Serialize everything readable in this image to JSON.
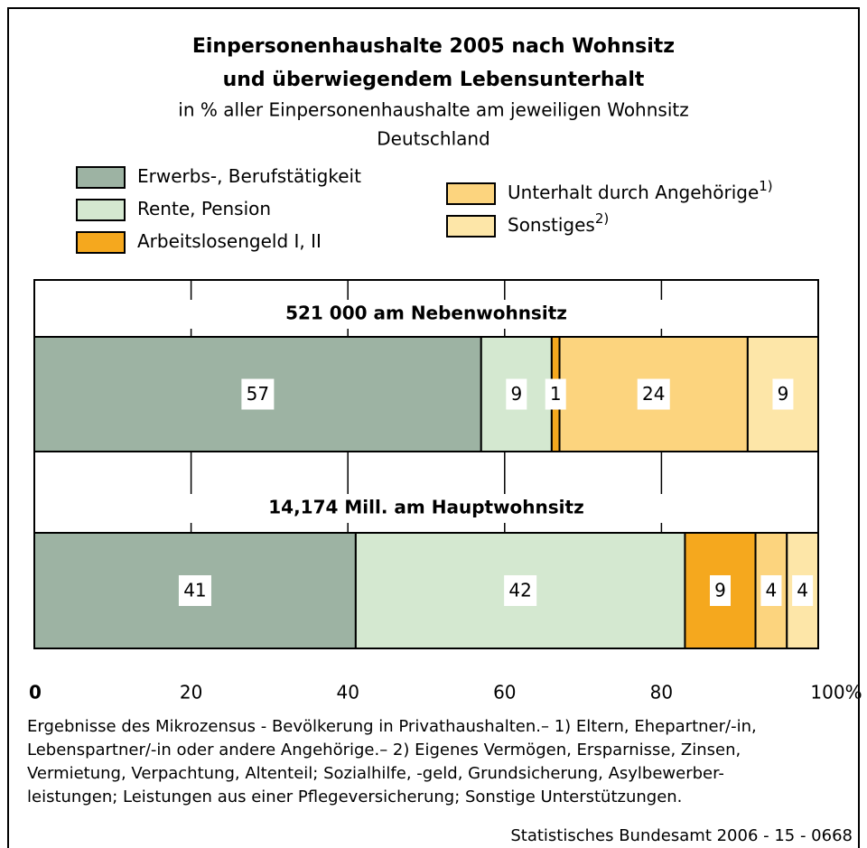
{
  "chart_data": {
    "type": "stacked_barh",
    "title": [
      "Einpersonenhaushalte 2005 nach Wohnsitz",
      "und überwiegendem Lebensunterhalt"
    ],
    "subtitle": [
      "in % aller Einpersonenhaushalte am jeweiligen Wohnsitz",
      "Deutschland"
    ],
    "categories": [
      "521 000 am Nebenwohnsitz",
      "14,174 Mill. am Hauptwohnsitz"
    ],
    "series": [
      {
        "name": "Erwerbs-, Berufstätigkeit",
        "color": "#9db3a3",
        "values": [
          57,
          41
        ]
      },
      {
        "name": "Rente, Pension",
        "color": "#d4e8d0",
        "values": [
          9,
          42
        ]
      },
      {
        "name": "Arbeitslosengeld I, II",
        "color": "#f5a81e",
        "values": [
          1,
          9
        ]
      },
      {
        "name": "Unterhalt durch Angehörige",
        "note": "1)",
        "color": "#fcd47e",
        "values": [
          24,
          4
        ]
      },
      {
        "name": "Sonstiges",
        "note": "2)",
        "color": "#fde6a8",
        "values": [
          9,
          4
        ]
      }
    ],
    "xlim": [
      0,
      100
    ],
    "xticks": [
      0,
      20,
      40,
      60,
      80,
      {
        "value": 100,
        "label": "100%"
      }
    ],
    "grid": true,
    "footnote": [
      "Ergebnisse des Mikrozensus - Bevölkerung in Privathaushalten.– 1) Eltern, Ehepartner/-in,",
      "Lebenspartner/-in oder andere Angehörige.– 2) Eigenes Vermögen, Ersparnisse, Zinsen,",
      "Vermietung, Verpachtung, Altenteil; Sozialhilfe, -geld, Grundsicherung, Asylbewerber-",
      "leistungen; Leistungen aus einer Pflegeversicherung; Sonstige Unterstützungen."
    ],
    "source": "Statistisches Bundesamt 2006 - 15 - 0668"
  }
}
